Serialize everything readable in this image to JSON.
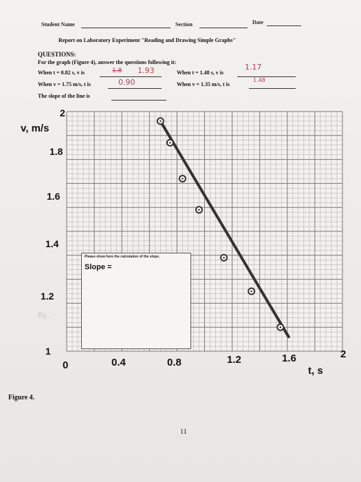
{
  "header": {
    "student_name_label": "Student Name",
    "section_label": "Section",
    "date_label": "Date"
  },
  "report_title": "Report on Laboratory Experiment \"Reading and Drawing Simple Graphs\"",
  "questions": {
    "heading": "QUESTIONS:",
    "intro": "For the graph (Figure 4), answer the questions following it:",
    "q1_prefix": "When t = 0.82 s, v is",
    "q1_answer": "1.93",
    "q1_struck": "1.8",
    "q2_prefix": "When t = 1.48 s, v is",
    "q2_answer": "1.17",
    "q3_prefix": "When v = 1.75 m/s, t is",
    "q3_answer": "0.90",
    "q4_prefix": "When v = 1.35 m/s, t is",
    "q4_answer": "1.48",
    "slope_prefix": "The slope of the line is"
  },
  "graph": {
    "y_axis_title": "v, m/s",
    "x_axis_title": "t, s",
    "y_ticks": [
      "2",
      "1.8",
      "1.6",
      "1.4",
      "1.2",
      "1"
    ],
    "x_ticks": [
      "0",
      "0.4",
      "0.8",
      "1.2",
      "1.6",
      "2"
    ],
    "slope_box_note": "Please show here the calculation of the slope.",
    "slope_box_label": "Slope ="
  },
  "chart_data": {
    "type": "line",
    "xlabel": "t, s",
    "ylabel": "v, m/s",
    "xlim": [
      0,
      2
    ],
    "ylim": [
      1,
      2
    ],
    "grid": true,
    "series": [
      {
        "x": [
          0.68,
          0.75,
          0.84,
          0.96,
          1.14,
          1.34,
          1.55
        ],
        "y": [
          1.96,
          1.87,
          1.72,
          1.59,
          1.39,
          1.25,
          1.1
        ]
      }
    ],
    "line_color": "#333333",
    "marker_style": "circle"
  },
  "figure_label": "Figure 4.",
  "page_number": "11"
}
